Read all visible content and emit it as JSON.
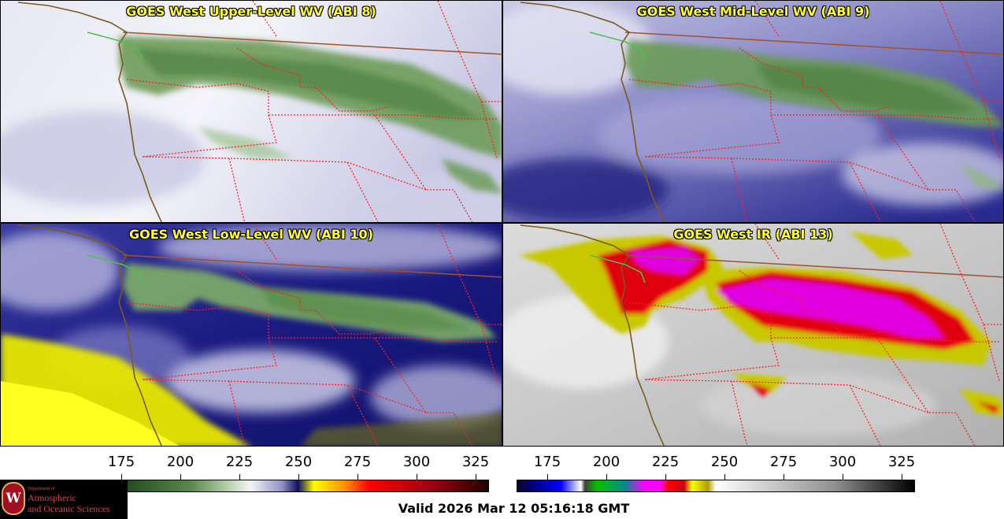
{
  "panels": [
    {
      "title": "GOES West Upper-Level WV (ABI 8)"
    },
    {
      "title": "GOES West Mid-Level WV (ABI 9)"
    },
    {
      "title": "GOES West Low-Level WV (ABI 10)"
    },
    {
      "title": "GOES West IR (ABI 13)"
    }
  ],
  "colorbar_left": {
    "ticks": [
      "175",
      "200",
      "225",
      "250",
      "275",
      "300",
      "325"
    ]
  },
  "colorbar_right": {
    "ticks": [
      "175",
      "200",
      "225",
      "250",
      "275",
      "300",
      "325"
    ]
  },
  "logo": {
    "seal": "W",
    "dept": "Department of",
    "line1": "Atmospheric",
    "line2": "and Oceanic Sciences"
  },
  "footer": {
    "valid": "Valid 2026 Mar 12 05:16:18 GMT"
  },
  "colors": {
    "title_text": "#ffff33",
    "state_border": "#ff2020",
    "coastline": "#7a5a20",
    "intl_border": "#a0522d"
  }
}
